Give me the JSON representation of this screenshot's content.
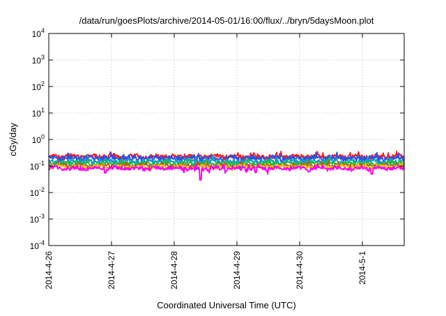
{
  "chart_data": {
    "type": "line",
    "title": "/data/run/goesPlots/archive/2014-05-01/16:00/flux/../bryn/5daysMoon.plot",
    "xlabel": "Coordinated Universal Time (UTC)",
    "ylabel": "cGy/day",
    "yscale": "log",
    "ylim": [
      0.0001,
      10000
    ],
    "xlim": [
      "2014-04-26T00:00",
      "2014-05-01T16:00"
    ],
    "grid": true,
    "x_ticks": [
      "2014-4-26",
      "2014-4-27",
      "2014-4-28",
      "2014-4-29",
      "2014-4-30",
      "2014-5-1"
    ],
    "y_ticks": [
      {
        "base": "10",
        "exp": "-4",
        "value": 0.0001
      },
      {
        "base": "10",
        "exp": "-3",
        "value": 0.001
      },
      {
        "base": "10",
        "exp": "-2",
        "value": 0.01
      },
      {
        "base": "10",
        "exp": "-1",
        "value": 0.1
      },
      {
        "base": "10",
        "exp": "0",
        "value": 1
      },
      {
        "base": "10",
        "exp": "1",
        "value": 10
      },
      {
        "base": "10",
        "exp": "2",
        "value": 100
      },
      {
        "base": "10",
        "exp": "3",
        "value": 1000
      },
      {
        "base": "10",
        "exp": "4",
        "value": 10000
      }
    ],
    "series": [
      {
        "color": "#ff1a1a",
        "level": 0.23,
        "variation": 0.17,
        "dips": []
      },
      {
        "color": "#2a52e6",
        "level": 0.2,
        "variation": 0.2,
        "dips": [
          [
            "2014-04-28T08:24",
            0.075
          ],
          [
            "2014-04-29T01:12",
            0.085
          ]
        ]
      },
      {
        "color": "#10a0c0",
        "level": 0.15,
        "variation": 0.15,
        "dips": []
      },
      {
        "color": "#22bb44",
        "level": 0.125,
        "variation": 0.12,
        "dips": []
      },
      {
        "color": "#b06020",
        "level": 0.105,
        "variation": 0.1,
        "dips": []
      },
      {
        "color": "#e8c000",
        "level": 0.095,
        "variation": 0.1,
        "dips": []
      },
      {
        "color": "#ff00ee",
        "level": 0.082,
        "variation": 0.14,
        "dips": [
          [
            "2014-04-28T10:05",
            0.03
          ],
          [
            "2014-04-26T21:36",
            0.055
          ],
          [
            "2014-04-29T07:12",
            0.058
          ],
          [
            "2014-04-30T03:36",
            0.06
          ],
          [
            "2014-05-01T03:36",
            0.05
          ]
        ]
      }
    ]
  }
}
